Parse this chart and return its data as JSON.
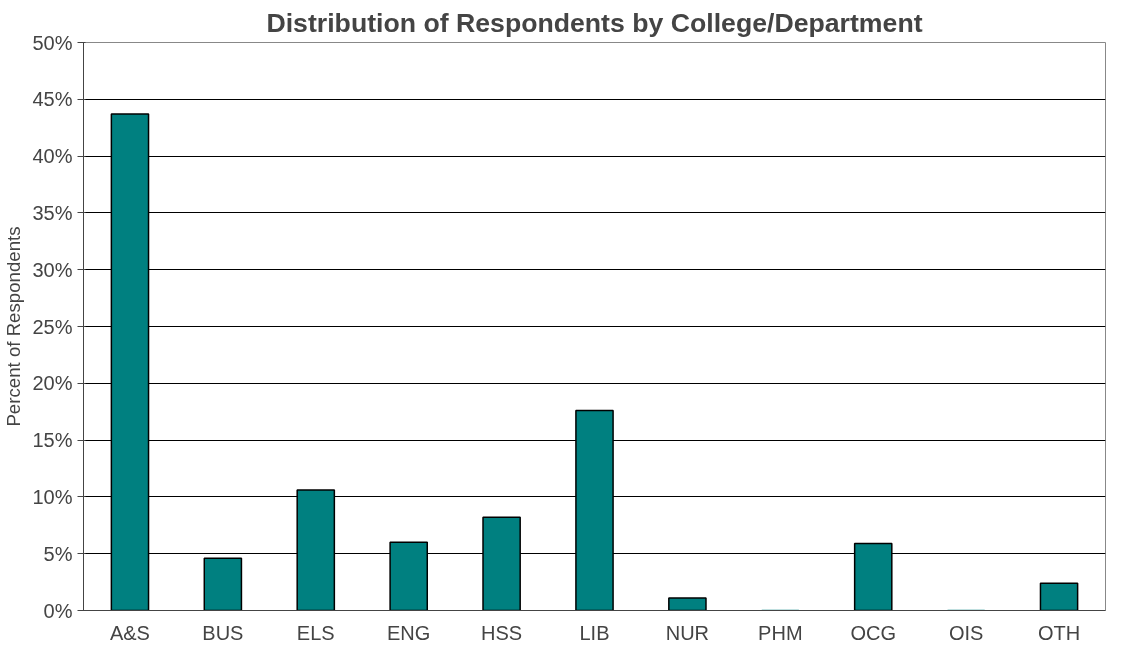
{
  "chart_data": {
    "type": "bar",
    "title": "Distribution of Respondents by College/Department",
    "ylabel": "Percent of Respondents",
    "categories": [
      "A&S",
      "BUS",
      "ELS",
      "ENG",
      "HSS",
      "LIB",
      "NUR",
      "PHM",
      "OCG",
      "OIS",
      "OTH"
    ],
    "values": [
      43.7,
      4.6,
      10.6,
      6.0,
      8.2,
      17.6,
      1.1,
      0,
      5.9,
      0,
      2.4
    ],
    "color": "#008080",
    "ylim": [
      0,
      50
    ],
    "yticks": [
      {
        "value": 0,
        "label": "0%"
      },
      {
        "value": 5,
        "label": "5%"
      },
      {
        "value": 10,
        "label": "10%"
      },
      {
        "value": 15,
        "label": "15%"
      },
      {
        "value": 20,
        "label": "20%"
      },
      {
        "value": 25,
        "label": "25%"
      },
      {
        "value": 30,
        "label": "30%"
      },
      {
        "value": 35,
        "label": "35%"
      },
      {
        "value": 40,
        "label": "40%"
      },
      {
        "value": 45,
        "label": "45%"
      },
      {
        "value": 50,
        "label": "50%"
      }
    ],
    "grid": "y"
  }
}
